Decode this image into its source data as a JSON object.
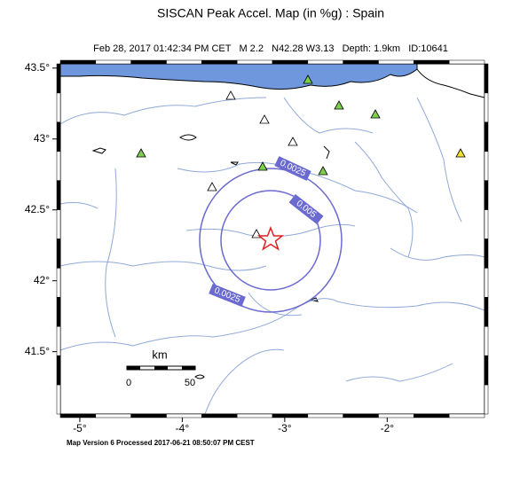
{
  "header": {
    "title": "SISCAN Peak Accel. Map (in %g) : Spain",
    "subtitle": "Feb 28, 2017 01:42:34 PM CET   M 2.2   N42.28 W3.13   Depth: 1.9km   ID:10641"
  },
  "map": {
    "xlim": [
      -5.19,
      -1.05
    ],
    "ylim": [
      41.06,
      43.53
    ],
    "xticks": [
      {
        "value": -5,
        "label": "-5°"
      },
      {
        "value": -4,
        "label": "-4°"
      },
      {
        "value": -3,
        "label": "-3°"
      },
      {
        "value": -2,
        "label": "-2°"
      }
    ],
    "yticks": [
      {
        "value": 43.5,
        "label": "43.5°"
      },
      {
        "value": 43,
        "label": "43°"
      },
      {
        "value": 42.5,
        "label": "42.5°"
      },
      {
        "value": 42,
        "label": "42°"
      },
      {
        "value": 41.5,
        "label": "41.5°"
      }
    ],
    "contour_labels": [
      "0.0025",
      "0.005",
      "0.0025"
    ],
    "scale_bar": {
      "unit": "km",
      "labels": [
        "0",
        "50"
      ]
    }
  },
  "footer": "Map Version 6 Processed 2017-06-21 08:50:07 PM CEST"
}
